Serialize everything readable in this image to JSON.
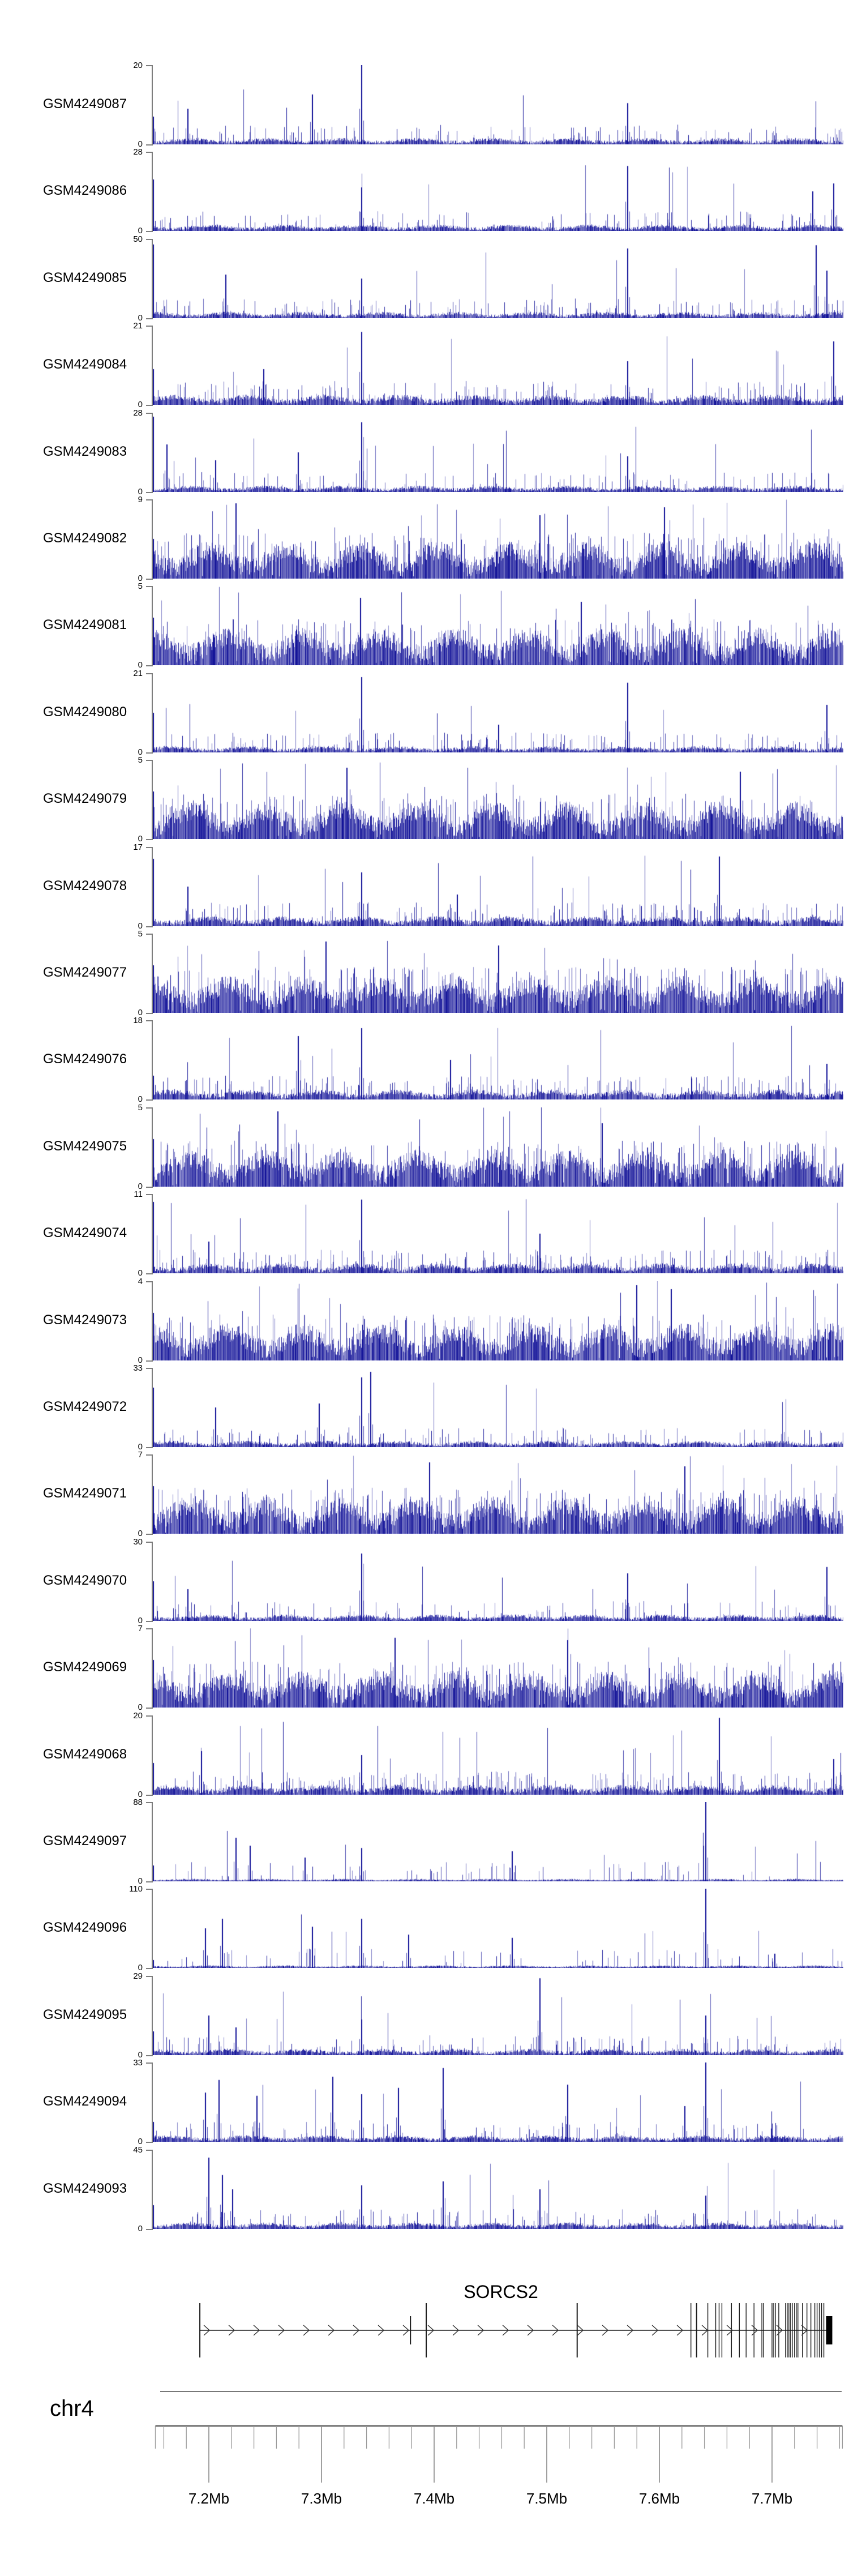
{
  "labels": {
    "gene_title": "SORCS2",
    "chromosome": "chr4"
  },
  "colors": {
    "signal": "#0d0d96",
    "background": "#ffffff",
    "track_axis": "#7d7d7d",
    "gene_lines": "#1a1a1a",
    "ruler_line": "#444444",
    "tick": "#999999",
    "separator": "#777777",
    "text": "#000000"
  },
  "profiles": {
    "dense": {
      "base": 0.26,
      "spike_p": 0.09,
      "spike_lo": 0.4,
      "spike_hi": 0.58,
      "tall_p": 0.012,
      "tall_lo": 0.62,
      "tall_hi": 1.0,
      "dip_p": 0.02
    },
    "medium": {
      "base": 0.07,
      "spike_p": 0.12,
      "spike_lo": 0.1,
      "spike_hi": 0.3,
      "tall_p": 0.012,
      "tall_lo": 0.4,
      "tall_hi": 0.95,
      "dip_p": 0
    },
    "sparse": {
      "base": 0.045,
      "spike_p": 0.08,
      "spike_lo": 0.08,
      "spike_hi": 0.25,
      "tall_p": 0.007,
      "tall_lo": 0.35,
      "tall_hi": 0.85,
      "dip_p": 0
    },
    "vsparse": {
      "base": 0.018,
      "spike_p": 0.05,
      "spike_lo": 0.06,
      "spike_hi": 0.25,
      "tall_p": 0.005,
      "tall_lo": 0.3,
      "tall_hi": 0.7,
      "dip_p": 0
    }
  },
  "chart_data": {
    "type": "area",
    "title": "",
    "window": {
      "chromosome": "chr4",
      "xlabel_unit": "Mb",
      "xlim": [
        7.1525,
        7.7625
      ]
    },
    "axis": {
      "minor_step_mb": 0.02,
      "minor_start_mb": 7.16,
      "minor_end_mb": 7.76,
      "major_ticks": [
        {
          "mb": 7.2,
          "label": "7.2Mb"
        },
        {
          "mb": 7.3,
          "label": "7.3Mb"
        },
        {
          "mb": 7.4,
          "label": "7.4Mb"
        },
        {
          "mb": 7.5,
          "label": "7.5Mb"
        },
        {
          "mb": 7.6,
          "label": "7.6Mb"
        },
        {
          "mb": 7.7,
          "label": "7.7Mb"
        }
      ]
    },
    "tracks": [
      {
        "label": "GSM4249087",
        "ymax": 20,
        "ymin": 0,
        "profile": "sparse",
        "seed": 11,
        "edge": 0.35,
        "spikes": [
          [
            0.05,
            0.45
          ],
          [
            0.23,
            0.63
          ],
          [
            0.302,
            1.0
          ],
          [
            0.687,
            0.52
          ]
        ]
      },
      {
        "label": "GSM4249086",
        "ymax": 28,
        "ymin": 0,
        "profile": "sparse",
        "seed": 22,
        "edge": 0.65,
        "spikes": [
          [
            0.302,
            0.55
          ],
          [
            0.687,
            0.82
          ],
          [
            0.955,
            0.5
          ],
          [
            0.985,
            0.6
          ]
        ]
      },
      {
        "label": "GSM4249085",
        "ymax": 50,
        "ymin": 0,
        "profile": "sparse",
        "seed": 33,
        "edge": 0.93,
        "spikes": [
          [
            0.105,
            0.55
          ],
          [
            0.302,
            0.5
          ],
          [
            0.687,
            0.88
          ],
          [
            0.96,
            0.92
          ],
          [
            0.975,
            0.6
          ]
        ]
      },
      {
        "label": "GSM4249084",
        "ymax": 21,
        "ymin": 0,
        "profile": "medium",
        "seed": 44,
        "edge": 0.45,
        "spikes": [
          [
            0.16,
            0.45
          ],
          [
            0.302,
            0.92
          ],
          [
            0.687,
            0.55
          ],
          [
            0.985,
            0.8
          ]
        ]
      },
      {
        "label": "GSM4249083",
        "ymax": 28,
        "ymin": 0,
        "profile": "sparse",
        "seed": 55,
        "edge": 0.95,
        "spikes": [
          [
            0.02,
            0.6
          ],
          [
            0.09,
            0.4
          ],
          [
            0.21,
            0.5
          ],
          [
            0.302,
            0.88
          ],
          [
            0.687,
            0.45
          ]
        ]
      },
      {
        "label": "GSM4249082",
        "ymax": 9,
        "ymin": 0,
        "profile": "dense",
        "seed": 66,
        "edge": 0.5,
        "spikes": [
          [
            0.12,
            0.95
          ],
          [
            0.56,
            0.8
          ],
          [
            0.74,
            0.9
          ]
        ]
      },
      {
        "label": "GSM4249081",
        "ymax": 5,
        "ymin": 0,
        "profile": "dense",
        "seed": 77,
        "edge": 0.6,
        "spikes": [
          [
            0.3,
            0.85
          ],
          [
            0.62,
            0.8
          ]
        ]
      },
      {
        "label": "GSM4249080",
        "ymax": 21,
        "ymin": 0,
        "profile": "sparse",
        "seed": 88,
        "edge": 0.5,
        "spikes": [
          [
            0.302,
            0.95
          ],
          [
            0.5,
            0.35
          ],
          [
            0.687,
            0.88
          ],
          [
            0.975,
            0.6
          ]
        ]
      },
      {
        "label": "GSM4249079",
        "ymax": 5,
        "ymin": 0,
        "profile": "dense",
        "seed": 99,
        "edge": 0.6,
        "spikes": [
          [
            0.28,
            0.9
          ],
          [
            0.85,
            0.85
          ]
        ]
      },
      {
        "label": "GSM4249078",
        "ymax": 17,
        "ymin": 0,
        "profile": "medium",
        "seed": 110,
        "edge": 0.85,
        "spikes": [
          [
            0.05,
            0.5
          ],
          [
            0.302,
            0.68
          ],
          [
            0.44,
            0.4
          ],
          [
            0.82,
            0.88
          ]
        ]
      },
      {
        "label": "GSM4249077",
        "ymax": 5,
        "ymin": 0,
        "profile": "dense",
        "seed": 121,
        "edge": 0.6,
        "spikes": [
          [
            0.25,
            0.9
          ],
          [
            0.5,
            0.85
          ]
        ]
      },
      {
        "label": "GSM4249076",
        "ymax": 18,
        "ymin": 0,
        "profile": "medium",
        "seed": 132,
        "edge": 0.3,
        "spikes": [
          [
            0.21,
            0.8
          ],
          [
            0.302,
            0.9
          ],
          [
            0.43,
            0.5
          ],
          [
            0.975,
            0.45
          ]
        ]
      },
      {
        "label": "GSM4249075",
        "ymax": 5,
        "ymin": 0,
        "profile": "dense",
        "seed": 143,
        "edge": 0.6,
        "spikes": [
          [
            0.18,
            0.95
          ],
          [
            0.65,
            0.8
          ]
        ]
      },
      {
        "label": "GSM4249074",
        "ymax": 11,
        "ymin": 0,
        "profile": "medium",
        "seed": 154,
        "edge": 0.9,
        "spikes": [
          [
            0.08,
            0.4
          ],
          [
            0.302,
            0.93
          ],
          [
            0.56,
            0.5
          ]
        ]
      },
      {
        "label": "GSM4249073",
        "ymax": 4,
        "ymin": 0,
        "profile": "dense",
        "seed": 165,
        "edge": 0.6,
        "spikes": [
          [
            0.7,
            0.95
          ],
          [
            0.75,
            0.9
          ]
        ]
      },
      {
        "label": "GSM4249072",
        "ymax": 33,
        "ymin": 0,
        "profile": "sparse",
        "seed": 176,
        "edge": 0.75,
        "spikes": [
          [
            0.09,
            0.5
          ],
          [
            0.24,
            0.55
          ],
          [
            0.302,
            0.88
          ],
          [
            0.315,
            0.95
          ]
        ]
      },
      {
        "label": "GSM4249071",
        "ymax": 7,
        "ymin": 0,
        "profile": "dense",
        "seed": 187,
        "edge": 0.6,
        "spikes": [
          [
            0.4,
            0.9
          ],
          [
            0.77,
            0.85
          ]
        ]
      },
      {
        "label": "GSM4249070",
        "ymax": 30,
        "ymin": 0,
        "profile": "sparse",
        "seed": 198,
        "edge": 0.5,
        "spikes": [
          [
            0.05,
            0.4
          ],
          [
            0.302,
            0.85
          ],
          [
            0.687,
            0.6
          ],
          [
            0.975,
            0.68
          ]
        ]
      },
      {
        "label": "GSM4249069",
        "ymax": 7,
        "ymin": 0,
        "profile": "dense",
        "seed": 209,
        "edge": 0.6,
        "spikes": [
          [
            0.35,
            0.88
          ],
          [
            0.6,
            0.85
          ]
        ]
      },
      {
        "label": "GSM4249068",
        "ymax": 20,
        "ymin": 0,
        "profile": "medium",
        "seed": 220,
        "edge": 0.4,
        "spikes": [
          [
            0.07,
            0.55
          ],
          [
            0.302,
            0.5
          ],
          [
            0.82,
            0.97
          ],
          [
            0.985,
            0.45
          ]
        ]
      },
      {
        "label": "GSM4249097",
        "ymax": 88,
        "ymin": 0,
        "profile": "vsparse",
        "seed": 231,
        "edge": 0.2,
        "spikes": [
          [
            0.12,
            0.55
          ],
          [
            0.14,
            0.45
          ],
          [
            0.22,
            0.3
          ],
          [
            0.302,
            0.42
          ],
          [
            0.52,
            0.38
          ],
          [
            0.8,
            1.0
          ]
        ]
      },
      {
        "label": "GSM4249096",
        "ymax": 110,
        "ymin": 0,
        "profile": "vsparse",
        "seed": 242,
        "edge": 0.1,
        "spikes": [
          [
            0.075,
            0.5
          ],
          [
            0.1,
            0.62
          ],
          [
            0.23,
            0.52
          ],
          [
            0.302,
            0.62
          ],
          [
            0.37,
            0.42
          ],
          [
            0.52,
            0.38
          ],
          [
            0.8,
            1.0
          ],
          [
            0.9,
            0.18
          ]
        ]
      },
      {
        "label": "GSM4249095",
        "ymax": 29,
        "ymin": 0,
        "profile": "sparse",
        "seed": 253,
        "edge": 0.3,
        "spikes": [
          [
            0.08,
            0.5
          ],
          [
            0.12,
            0.35
          ],
          [
            0.302,
            0.45
          ],
          [
            0.56,
            0.97
          ],
          [
            0.8,
            0.5
          ]
        ]
      },
      {
        "label": "GSM4249094",
        "ymax": 33,
        "ymin": 0,
        "profile": "sparse",
        "seed": 264,
        "edge": 0.25,
        "spikes": [
          [
            0.075,
            0.62
          ],
          [
            0.095,
            0.78
          ],
          [
            0.15,
            0.58
          ],
          [
            0.26,
            0.82
          ],
          [
            0.302,
            0.6
          ],
          [
            0.355,
            0.68
          ],
          [
            0.42,
            0.93
          ],
          [
            0.6,
            0.72
          ],
          [
            0.77,
            0.45
          ],
          [
            0.8,
            1.0
          ]
        ]
      },
      {
        "label": "GSM4249093",
        "ymax": 45,
        "ymin": 0,
        "profile": "sparse",
        "seed": 275,
        "edge": 0.3,
        "spikes": [
          [
            0.08,
            0.9
          ],
          [
            0.1,
            0.68
          ],
          [
            0.115,
            0.5
          ],
          [
            0.302,
            0.55
          ],
          [
            0.42,
            0.6
          ],
          [
            0.56,
            0.5
          ],
          [
            0.8,
            0.42
          ]
        ]
      }
    ],
    "gene": {
      "name": "SORCS2",
      "strand": "+",
      "span_mb": [
        7.192,
        7.7535
      ],
      "tall_marks_mb": [
        7.192,
        7.393,
        7.527,
        7.633
      ],
      "medium_marks_mb": [
        7.379
      ],
      "exons_mb": [
        7.628,
        7.643,
        7.65,
        7.653,
        7.6555,
        7.664,
        7.671,
        7.677,
        7.684,
        7.691,
        7.6925,
        7.7,
        7.7015,
        7.703,
        7.706,
        7.712,
        7.7135,
        7.715,
        7.7165,
        7.718,
        7.72,
        7.7215,
        7.723,
        7.727,
        7.731,
        7.7345,
        7.738,
        7.74,
        7.742,
        7.744,
        7.746
      ],
      "end_box_mb": [
        7.748,
        7.7535
      ]
    }
  }
}
